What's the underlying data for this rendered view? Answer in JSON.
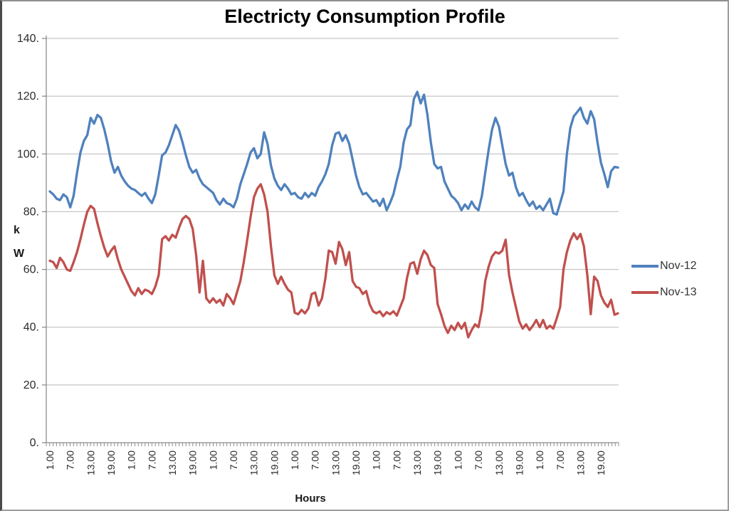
{
  "chart_data": {
    "type": "line",
    "title": "Electricty Consumption Profile",
    "xlabel": "Hours",
    "ylabel": "kW",
    "ylabel_lines": [
      "k",
      "W"
    ],
    "ylim": [
      0,
      140
    ],
    "y_ticks": [
      0,
      20,
      40,
      60,
      80,
      100,
      120,
      140
    ],
    "y_tick_labels": [
      "0.",
      "20.",
      "40.",
      "60.",
      "80.",
      "100.",
      "120.",
      "140."
    ],
    "x_count": 168,
    "x_label_every": 6,
    "x_tick_labels": [
      "1.00",
      "7.00",
      "13.00",
      "19.00",
      "1.00",
      "7.00",
      "13.00",
      "19.00",
      "1.00",
      "7.00",
      "13.00",
      "19.00",
      "1.00",
      "7.00",
      "13.00",
      "19.00",
      "1.00",
      "7.00",
      "13.00",
      "19.00",
      "1.00",
      "7.00",
      "13.00",
      "19.00",
      "1.00",
      "7.00",
      "13.00",
      "19.00"
    ],
    "grid": true,
    "legend_position": "right",
    "legend": [
      {
        "name": "Nov-12",
        "color": "#4F81BD"
      },
      {
        "name": "Nov-13",
        "color": "#C0504D"
      }
    ],
    "series": [
      {
        "name": "Nov-12",
        "color": "#4F81BD",
        "values": [
          87,
          86,
          84.5,
          84,
          86,
          85,
          81.5,
          85.5,
          93.5,
          100.5,
          104.5,
          106.5,
          112.5,
          110.5,
          113.5,
          112.5,
          108.5,
          103.5,
          97.5,
          93.5,
          95.5,
          92.5,
          90.5,
          89,
          88,
          87.5,
          86.5,
          85.5,
          86.5,
          84.5,
          83,
          86,
          92.5,
          99.5,
          100.5,
          103,
          106.5,
          110,
          108,
          104,
          99.5,
          95.5,
          93.5,
          94.5,
          91.5,
          89.5,
          88.5,
          87.5,
          86.5,
          84,
          82.5,
          84.5,
          83,
          82.5,
          81.5,
          84.5,
          89.5,
          93,
          96.5,
          100.5,
          102,
          98.5,
          100,
          107.5,
          103.5,
          96,
          91.5,
          89,
          87.5,
          89.5,
          88,
          86,
          86.5,
          85,
          84.5,
          86.5,
          85,
          86.5,
          85.5,
          88.5,
          90.5,
          93,
          96.5,
          103,
          107,
          107.5,
          104.5,
          106.5,
          103.5,
          98,
          92.5,
          88.5,
          86,
          86.5,
          85,
          83.5,
          84,
          82,
          84.5,
          80.5,
          83,
          86,
          91,
          95.5,
          104,
          108.5,
          110,
          119,
          121.5,
          117.5,
          120.5,
          113.5,
          104,
          96.5,
          95,
          95.5,
          90.5,
          88,
          85.5,
          84.5,
          83,
          80.5,
          82.5,
          81,
          83.5,
          81.5,
          80.5,
          85.5,
          93.5,
          101.5,
          108.5,
          112.5,
          109.5,
          103,
          96.5,
          92.5,
          93.5,
          88.5,
          85.5,
          86.5,
          84,
          82,
          83.5,
          81,
          82,
          80.5,
          82.5,
          84.5,
          79.5,
          79,
          83,
          87,
          100,
          109,
          113,
          114.5,
          116,
          112.5,
          110.5,
          114.8,
          112,
          104,
          97,
          93,
          88.5,
          94,
          95.5,
          95.3
        ]
      },
      {
        "name": "Nov-13",
        "color": "#C0504D",
        "values": [
          63,
          62.5,
          60.5,
          64,
          62.5,
          60,
          59.5,
          62.5,
          66,
          70.5,
          75.5,
          80,
          82,
          81,
          76,
          71.5,
          67.5,
          64.5,
          66.5,
          68,
          63.5,
          60,
          57.5,
          55,
          52.5,
          51,
          53.5,
          51.5,
          53,
          52.5,
          51.5,
          54,
          58,
          70.5,
          71.5,
          70,
          72,
          71,
          74.5,
          77.5,
          78.5,
          77.5,
          74,
          65,
          52,
          63,
          50,
          48.5,
          50,
          48.5,
          49.5,
          47.5,
          51.5,
          50,
          48,
          52,
          56,
          62.5,
          70,
          78,
          85,
          88,
          89.5,
          86,
          80,
          68,
          58,
          55,
          57.5,
          55,
          53,
          52,
          45,
          44.5,
          46,
          44.8,
          46.5,
          51.5,
          52,
          47.5,
          50,
          57,
          66.5,
          66,
          62,
          69.5,
          67,
          61.5,
          66,
          56,
          54,
          53.5,
          51.5,
          52.5,
          48,
          45.5,
          44.8,
          45.5,
          43.8,
          45.2,
          44.5,
          45.5,
          44,
          47,
          50,
          57,
          62,
          62.5,
          58.5,
          63.5,
          66.5,
          65,
          61.5,
          60.5,
          48,
          44.5,
          40.5,
          38,
          40.5,
          39,
          41.5,
          39.5,
          41.5,
          36.5,
          39,
          41,
          40,
          46,
          56,
          61,
          64.5,
          66,
          65.5,
          66.5,
          70.3,
          58,
          52,
          47,
          42,
          39.5,
          41,
          39,
          40.5,
          42.5,
          40,
          42.5,
          39.5,
          40.5,
          39.5,
          43,
          47,
          60,
          66,
          70,
          72.5,
          70.5,
          72.3,
          68,
          58,
          44.5,
          57.5,
          56,
          51,
          48.5,
          47,
          49.5,
          44.3,
          44.8
        ]
      }
    ],
    "axis_color": "#8c8c8c",
    "gridline_color": "#b9b9b9",
    "tick_label_color": "#2b2b2b"
  }
}
